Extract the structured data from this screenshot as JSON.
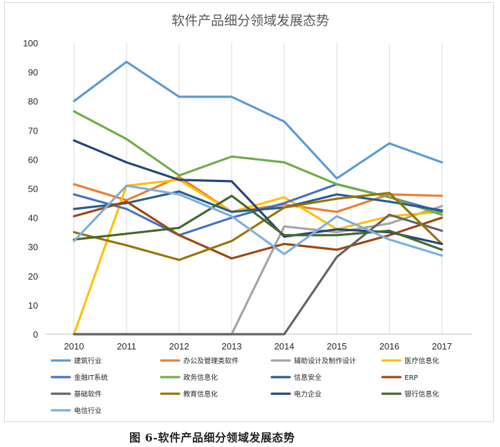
{
  "caption": "图 6-软件产品细分领域发展态势",
  "chart_data": {
    "type": "line",
    "title": "软件产品细分领域发展态势",
    "xlabel": "",
    "ylabel": "",
    "ylim": [
      0,
      100
    ],
    "yticks": [
      0,
      10,
      20,
      30,
      40,
      50,
      60,
      70,
      80,
      90,
      100
    ],
    "x": [
      "2010",
      "2011",
      "2012",
      "2013",
      "2014",
      "2015",
      "2016",
      "2017"
    ],
    "grid": "vertical",
    "legend_position": "bottom",
    "series": [
      {
        "name": "建筑行业",
        "color": "#5B9BD5",
        "values": [
          80,
          93.5,
          81.5,
          81.5,
          73,
          53.5,
          65.5,
          59
        ]
      },
      {
        "name": "办公及管理类软件",
        "color": "#ED7D31",
        "values": [
          51.5,
          46,
          54,
          42,
          44.5,
          42,
          48,
          47.5
        ]
      },
      {
        "name": "辅助设计及制作设计",
        "color": "#A5A5A5",
        "values": [
          0,
          0,
          0,
          0,
          37,
          35,
          38,
          44
        ]
      },
      {
        "name": "医疗信息化",
        "color": "#FFC000",
        "values": [
          0,
          51,
          53,
          42,
          47,
          36,
          40.5,
          42
        ]
      },
      {
        "name": "金融IT系统",
        "color": "#4472C4",
        "values": [
          48,
          43,
          34,
          40,
          45,
          51.5,
          47,
          42
        ]
      },
      {
        "name": "政务信息化",
        "color": "#70AD47",
        "values": [
          76.5,
          67,
          54.5,
          61,
          59,
          51.5,
          47,
          41
        ]
      },
      {
        "name": "信息安全",
        "color": "#255E91",
        "values": [
          43,
          45,
          49,
          42,
          43.5,
          48,
          45.5,
          42.5
        ]
      },
      {
        "name": "ERP",
        "color": "#9E480E",
        "values": [
          40.5,
          45.5,
          34,
          26,
          31,
          29,
          34,
          40
        ]
      },
      {
        "name": "基础软件",
        "color": "#636363",
        "values": [
          0,
          0,
          0,
          0,
          0,
          26.5,
          41,
          35.5
        ]
      },
      {
        "name": "教育信息化",
        "color": "#997300",
        "values": [
          35,
          30.5,
          25.5,
          32,
          43.5,
          46.5,
          48.5,
          31
        ]
      },
      {
        "name": "电力企业",
        "color": "#264478",
        "values": [
          66.5,
          59,
          53,
          52.5,
          33.5,
          36,
          35,
          31
        ]
      },
      {
        "name": "银行信息化",
        "color": "#43682B",
        "values": [
          32.5,
          34.5,
          36.5,
          47.5,
          34,
          34,
          35.5,
          29
        ]
      },
      {
        "name": "电信行业",
        "color": "#7CAFDD",
        "values": [
          32,
          51,
          48,
          40.5,
          27.5,
          40.5,
          32.5,
          27
        ]
      }
    ]
  }
}
